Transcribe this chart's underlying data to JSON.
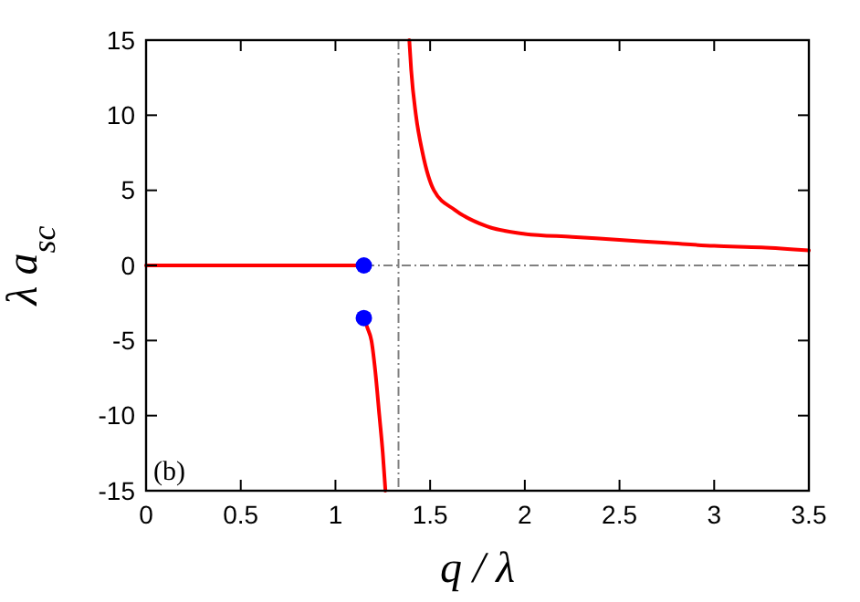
{
  "chart_data": {
    "type": "line",
    "xlabel": "q / λ",
    "ylabel": "λ a$_{sc}$",
    "annotations": [
      "(b)"
    ],
    "xlim": [
      0,
      3.5
    ],
    "ylim": [
      -15,
      15
    ],
    "xticks": [
      0,
      0.5,
      1,
      1.5,
      2,
      2.5,
      3,
      3.5
    ],
    "yticks": [
      15,
      10,
      5,
      0,
      -5,
      -10,
      -15
    ],
    "grid": false,
    "ref_lines": [
      {
        "axis": "x",
        "value": 1.333,
        "color": "#808080"
      },
      {
        "axis": "y",
        "value": 0,
        "color": "#808080"
      }
    ],
    "series": [
      {
        "color": "#ff0000",
        "x": [
          0,
          1.15
        ],
        "values": [
          0,
          0
        ]
      },
      {
        "color": "#ff0000",
        "x": [
          1.15,
          1.17,
          1.19,
          1.21,
          1.232,
          1.25,
          1.264
        ],
        "values": [
          -3.5,
          -4.2,
          -5,
          -7,
          -10,
          -12.5,
          -15
        ]
      },
      {
        "color": "#ff0000",
        "x": [
          1.39,
          1.4,
          1.425,
          1.46,
          1.52,
          1.63,
          1.8,
          2,
          2.25,
          2.5,
          2.75,
          3,
          3.25,
          3.5
        ],
        "values": [
          15,
          13,
          10,
          7.5,
          5,
          3.7,
          2.6,
          2.1,
          1.9,
          1.7,
          1.5,
          1.3,
          1.2,
          1
        ]
      },
      {
        "type": "scatter",
        "color": "#0000ff",
        "marker": "circle",
        "x": [
          1.15,
          1.15
        ],
        "values": [
          0,
          -3.5
        ]
      }
    ]
  }
}
